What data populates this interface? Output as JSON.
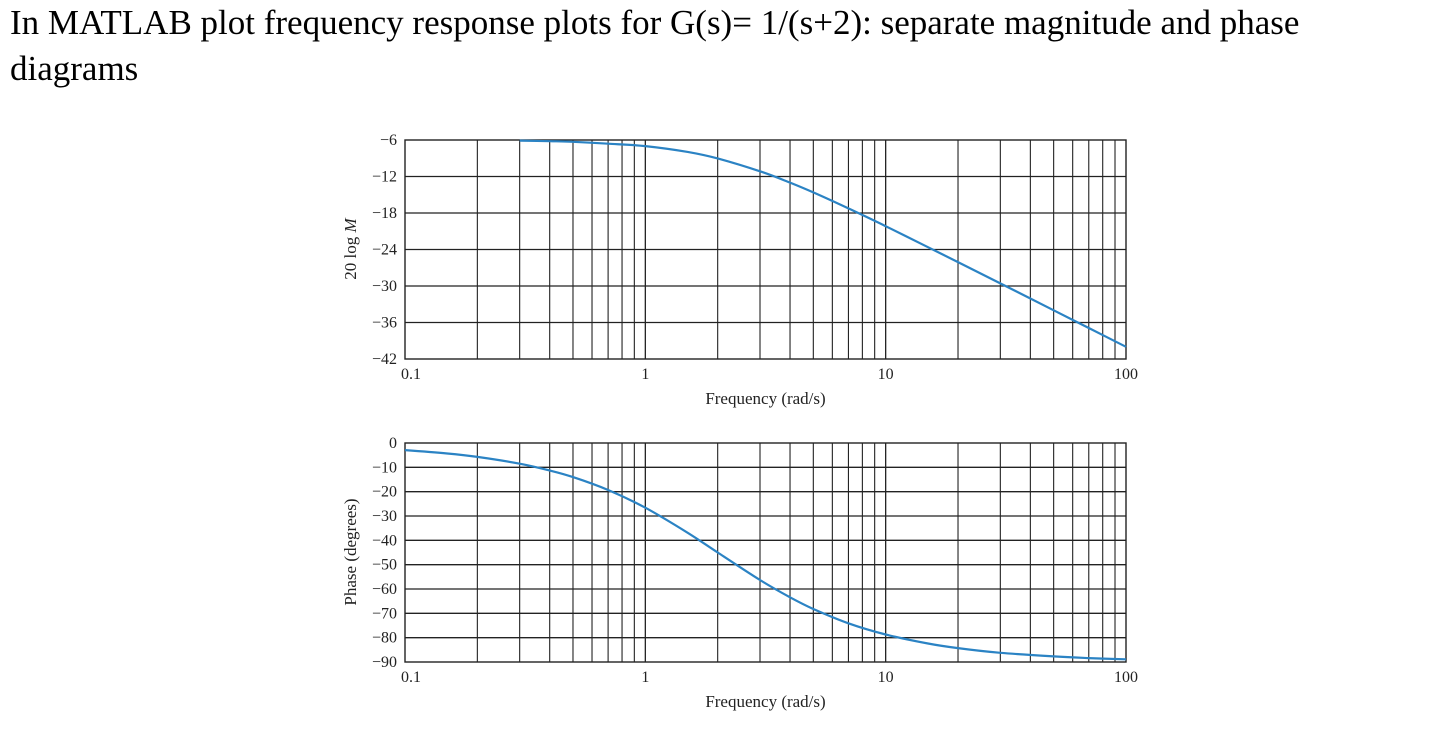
{
  "question": {
    "text": "In MATLAB plot frequency response plots for G(s)= 1/(s+2): separate magnitude and phase diagrams"
  },
  "colors": {
    "curve": "#2b83c4",
    "grid": "#222222",
    "background": "#ffffff"
  },
  "chart_data": [
    {
      "type": "line",
      "xscale": "log",
      "xlim": [
        0.1,
        100
      ],
      "ylim": [
        -42,
        -6
      ],
      "xlabel": "Frequency (rad/s)",
      "ylabel": "20 log M",
      "ylabel_main": "20 log ",
      "ylabel_var": "M",
      "xticks": [
        0.1,
        1,
        10,
        100
      ],
      "xtick_labels": [
        "0.1",
        "1",
        "10",
        "100"
      ],
      "yticks": [
        -6,
        -12,
        -18,
        -24,
        -30,
        -36,
        -42
      ],
      "ytick_labels": [
        "−6",
        "−12",
        "−18",
        "−24",
        "−30",
        "−36",
        "−42"
      ],
      "grid": true,
      "series": [
        {
          "x": [
            0.3,
            0.4,
            0.5,
            0.7,
            1,
            1.5,
            2,
            3,
            4,
            5,
            7,
            10,
            15,
            20,
            30,
            50,
            70,
            100
          ],
          "y": [
            -6.1,
            -6.2,
            -6.3,
            -6.6,
            -7.0,
            -7.96,
            -9.03,
            -11.14,
            -13.01,
            -14.62,
            -17.25,
            -20.17,
            -23.62,
            -26.07,
            -29.57,
            -33.99,
            -36.91,
            -40.0
          ]
        }
      ]
    },
    {
      "type": "line",
      "xscale": "log",
      "xlim": [
        0.1,
        100
      ],
      "ylim": [
        -90,
        0
      ],
      "xlabel": "Frequency (rad/s)",
      "ylabel": "Phase (degrees)",
      "xticks": [
        0.1,
        1,
        10,
        100
      ],
      "xtick_labels": [
        "0.1",
        "1",
        "10",
        "100"
      ],
      "yticks": [
        0,
        -10,
        -20,
        -30,
        -40,
        -50,
        -60,
        -70,
        -80,
        -90
      ],
      "ytick_labels": [
        "0",
        "−10",
        "−20",
        "−30",
        "−40",
        "−50",
        "−60",
        "−70",
        "−80",
        "−90"
      ],
      "grid": true,
      "series": [
        {
          "x": [
            0.1,
            0.15,
            0.2,
            0.3,
            0.4,
            0.5,
            0.7,
            1,
            1.5,
            2,
            3,
            4,
            5,
            7,
            10,
            15,
            20,
            30,
            50,
            70,
            100
          ],
          "y": [
            -2.9,
            -4.3,
            -5.7,
            -8.5,
            -11.3,
            -14.0,
            -19.3,
            -26.6,
            -36.9,
            -45.0,
            -56.3,
            -63.4,
            -68.2,
            -74.1,
            -78.7,
            -82.4,
            -84.3,
            -86.2,
            -87.7,
            -88.4,
            -88.9
          ]
        }
      ]
    }
  ]
}
